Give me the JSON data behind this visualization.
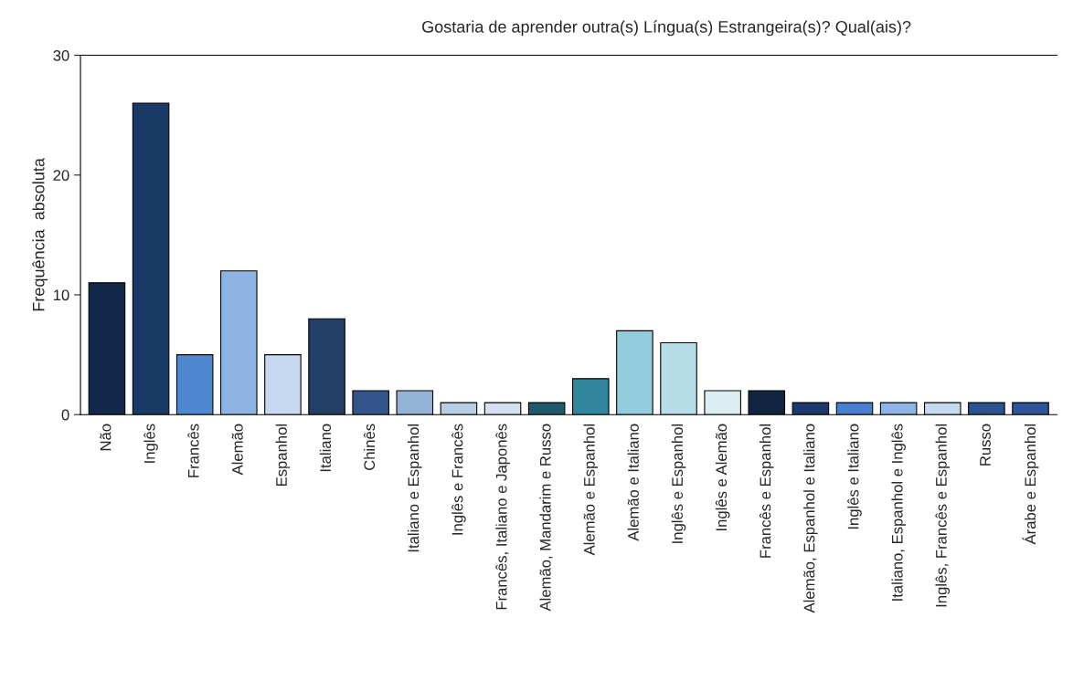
{
  "chart_data": {
    "type": "bar",
    "title": "Gostaria de aprender outra(s) Língua(s) Estrangeira(s)? Qual(ais)?",
    "ylabel": "Frequência  absoluta",
    "categories": [
      "Não",
      "Inglês",
      "Francês",
      "Alemão",
      "Espanhol",
      "Italiano",
      "Chinês",
      "Italiano e Espanhol",
      "Inglês e Francês",
      "Francês, Italiano e Japonês",
      "Alemão, Mandarim e Russo",
      "Alemão e Espanhol",
      "Alemão e Italiano",
      "Inglês e Espanhol",
      "Inglês e Alemão",
      "Francês e Espanhol",
      "Alemão, Espanhol e Italiano",
      "Inglês e Italiano",
      "Italiano, Espanhol e Inglês",
      "Inglês, Francês e Espanhol",
      "Russo",
      "Árabe e Espanhol"
    ],
    "values": [
      11,
      26,
      5,
      12,
      5,
      8,
      2,
      2,
      1,
      1,
      1,
      3,
      7,
      6,
      2,
      2,
      1,
      1,
      1,
      1,
      1,
      1
    ],
    "colors": [
      "#13294b",
      "#1a3a66",
      "#4f87d0",
      "#8db4e2",
      "#c6d9f1",
      "#243f66",
      "#34558c",
      "#95b3d7",
      "#b9cde5",
      "#d4e0ef",
      "#1f5a6b",
      "#31859c",
      "#93cddd",
      "#b7dee8",
      "#dbeef4",
      "#10243f",
      "#1b3a6b",
      "#4a7fce",
      "#8db4e2",
      "#c6d9f1",
      "#2d5290",
      "#2f5597"
    ],
    "ylim": [
      0,
      30
    ],
    "yticks": [
      0,
      10,
      20,
      30
    ],
    "grid": false,
    "legend": false
  }
}
